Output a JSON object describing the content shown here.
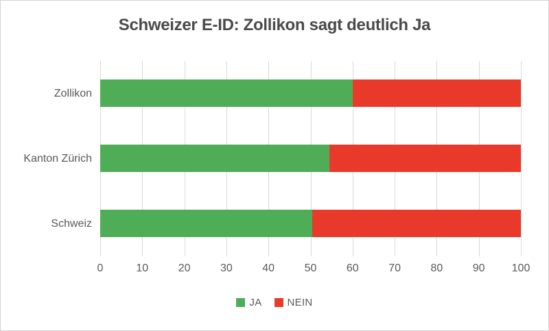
{
  "chart_data": {
    "type": "bar",
    "orientation": "horizontal",
    "stacked": true,
    "title": "Schweizer E-ID: Zollikon sagt deutlich Ja",
    "categories": [
      "Zollikon",
      "Kanton Zürich",
      "Schweiz"
    ],
    "series": [
      {
        "name": "JA",
        "color": "#4FAD58",
        "values": [
          60.0,
          54.5,
          50.4
        ]
      },
      {
        "name": "NEIN",
        "color": "#E8392B",
        "values": [
          40.0,
          45.5,
          49.6
        ]
      }
    ],
    "xlim": [
      0,
      100
    ],
    "xticks": [
      0,
      10,
      20,
      30,
      40,
      50,
      60,
      70,
      80,
      90,
      100
    ],
    "grid": "vertical-major",
    "legend_position": "bottom",
    "colors": {
      "gridline": "#D9D9D9",
      "axis_text": "#595959",
      "title_text": "#4A4A4A",
      "border": "#D3D3D3",
      "background": "#FFFFFF"
    }
  }
}
